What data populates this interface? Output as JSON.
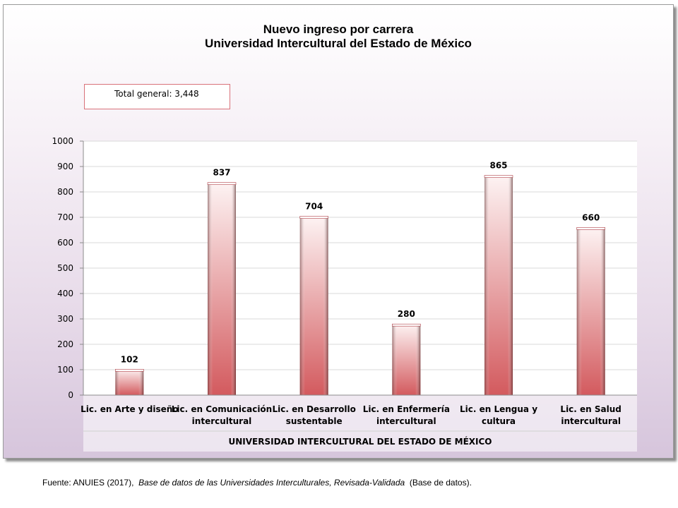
{
  "chart_data": {
    "type": "bar",
    "title": "Nuevo ingreso por carrera",
    "subtitle": "Universidad Intercultural del Estado de México",
    "total_label": "Total general: 3,448",
    "categories": [
      [
        "Lic. en Arte y diseño"
      ],
      [
        "Lic. en Comunicación",
        "intercultural"
      ],
      [
        "Lic. en Desarrollo",
        "sustentable"
      ],
      [
        "Lic. en Enfermería",
        "intercultural"
      ],
      [
        "Lic. en Lengua y",
        "cultura"
      ],
      [
        "Lic. en Salud",
        "intercultural"
      ]
    ],
    "values": [
      102,
      837,
      704,
      280,
      865,
      660
    ],
    "xlabel": "UNIVERSIDAD INTERCULTURAL DEL ESTADO DE MÉXICO",
    "ylabel": "",
    "ylim": [
      0,
      1000
    ],
    "yticks": [
      0,
      100,
      200,
      300,
      400,
      500,
      600,
      700,
      800,
      900,
      1000
    ],
    "data_labels": true,
    "grid": true,
    "bar_color_top": "#fdf3f3",
    "bar_color_bottom": "#d35a5e"
  },
  "footer": {
    "source_prefix": "Fuente: ANUIES (2017),",
    "source_italic": "Base de datos de las Universidades  Interculturales, Revisada-Validada",
    "source_suffix": "(Base de datos)."
  }
}
